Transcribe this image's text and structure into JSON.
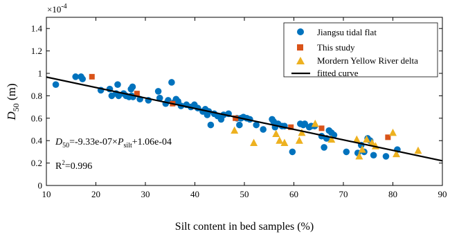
{
  "chart_data": {
    "type": "scatter",
    "xlabel": "Silt content in bed samples (%)",
    "ylabel_main": "D",
    "ylabel_sub": "50",
    "ylabel_unit": " (m)",
    "exponent_label": "×10",
    "exponent_power": "-4",
    "xlim": [
      10,
      90
    ],
    "ylim": [
      0,
      1.5
    ],
    "x_ticks": [
      10,
      20,
      30,
      40,
      50,
      60,
      70,
      80,
      90
    ],
    "y_ticks": [
      0,
      0.2,
      0.4,
      0.6,
      0.8,
      1.0,
      1.2,
      1.4
    ],
    "y_tick_labels": [
      "0",
      "0.2",
      "0.4",
      "0.6",
      "0.8",
      "1",
      "1.2",
      "1.4"
    ],
    "grid": false,
    "legend_position": "top-right",
    "equation": {
      "lhs_main": "D",
      "lhs_sub": "50",
      "rhs_a": "=-9.33e-07×",
      "rhs_p": "P",
      "rhs_sub": "silt",
      "rhs_b": "+1.06e-04"
    },
    "r2": {
      "main": "R",
      "sup": "2",
      "rest": "=0.996"
    },
    "series": [
      {
        "name": "Jiangsu tidal flat",
        "marker": "circle",
        "color": "#0072BD",
        "points": [
          [
            11.9,
            0.9
          ],
          [
            15.9,
            0.97
          ],
          [
            17.0,
            0.97
          ],
          [
            17.3,
            0.95
          ],
          [
            21.0,
            0.85
          ],
          [
            22.8,
            0.86
          ],
          [
            23.2,
            0.8
          ],
          [
            24.1,
            0.82
          ],
          [
            24.4,
            0.9
          ],
          [
            24.6,
            0.8
          ],
          [
            25.6,
            0.82
          ],
          [
            26.1,
            0.8
          ],
          [
            26.7,
            0.79
          ],
          [
            27.1,
            0.86
          ],
          [
            27.2,
            0.8
          ],
          [
            27.4,
            0.88
          ],
          [
            27.5,
            0.79
          ],
          [
            28.9,
            0.77
          ],
          [
            30.6,
            0.76
          ],
          [
            32.6,
            0.84
          ],
          [
            32.9,
            0.78
          ],
          [
            34.1,
            0.73
          ],
          [
            34.6,
            0.76
          ],
          [
            35.3,
            0.92
          ],
          [
            35.8,
            0.74
          ],
          [
            36.2,
            0.77
          ],
          [
            36.6,
            0.75
          ],
          [
            37.2,
            0.71
          ],
          [
            38.3,
            0.72
          ],
          [
            39.2,
            0.7
          ],
          [
            39.9,
            0.72
          ],
          [
            40.6,
            0.69
          ],
          [
            41.6,
            0.66
          ],
          [
            42.1,
            0.68
          ],
          [
            42.5,
            0.63
          ],
          [
            42.8,
            0.66
          ],
          [
            43.2,
            0.54
          ],
          [
            43.9,
            0.64
          ],
          [
            44.6,
            0.62
          ],
          [
            45.3,
            0.59
          ],
          [
            45.8,
            0.63
          ],
          [
            46.8,
            0.64
          ],
          [
            48.5,
            0.6
          ],
          [
            49.0,
            0.54
          ],
          [
            49.3,
            0.6
          ],
          [
            49.8,
            0.61
          ],
          [
            50.5,
            0.6
          ],
          [
            51.1,
            0.59
          ],
          [
            52.4,
            0.54
          ],
          [
            53.8,
            0.5
          ],
          [
            55.6,
            0.59
          ],
          [
            55.9,
            0.57
          ],
          [
            56.2,
            0.52
          ],
          [
            56.8,
            0.55
          ],
          [
            57.6,
            0.53
          ],
          [
            58.1,
            0.53
          ],
          [
            59.7,
            0.3
          ],
          [
            61.3,
            0.55
          ],
          [
            61.9,
            0.54
          ],
          [
            62.2,
            0.55
          ],
          [
            63.1,
            0.52
          ],
          [
            63.5,
            0.53
          ],
          [
            64.2,
            0.53
          ],
          [
            65.6,
            0.44
          ],
          [
            66.1,
            0.34
          ],
          [
            66.6,
            0.42
          ],
          [
            67.1,
            0.49
          ],
          [
            67.6,
            0.47
          ],
          [
            68.1,
            0.45
          ],
          [
            70.6,
            0.3
          ],
          [
            72.9,
            0.29
          ],
          [
            73.6,
            0.36
          ],
          [
            74.2,
            0.3
          ],
          [
            74.9,
            0.42
          ],
          [
            75.4,
            0.4
          ],
          [
            76.1,
            0.27
          ],
          [
            78.6,
            0.26
          ],
          [
            80.9,
            0.32
          ]
        ]
      },
      {
        "name": "This study",
        "marker": "square",
        "color": "#D95319",
        "points": [
          [
            19.2,
            0.97
          ],
          [
            28.3,
            0.82
          ],
          [
            35.5,
            0.73
          ],
          [
            48.2,
            0.6
          ],
          [
            59.4,
            0.52
          ],
          [
            65.6,
            0.51
          ],
          [
            79.0,
            0.43
          ]
        ]
      },
      {
        "name": "Mordern Yellow River delta",
        "marker": "triangle",
        "color": "#EDB120",
        "points": [
          [
            48.0,
            0.49
          ],
          [
            51.9,
            0.38
          ],
          [
            56.4,
            0.46
          ],
          [
            57.1,
            0.4
          ],
          [
            58.1,
            0.38
          ],
          [
            61.1,
            0.4
          ],
          [
            61.6,
            0.47
          ],
          [
            64.3,
            0.55
          ],
          [
            67.6,
            0.41
          ],
          [
            72.7,
            0.41
          ],
          [
            73.2,
            0.26
          ],
          [
            73.8,
            0.32
          ],
          [
            74.7,
            0.41
          ],
          [
            75.8,
            0.38
          ],
          [
            76.5,
            0.35
          ],
          [
            80.0,
            0.47
          ],
          [
            80.7,
            0.28
          ],
          [
            85.1,
            0.31
          ]
        ]
      },
      {
        "name": "fitted curve",
        "marker": "line",
        "color": "#000000",
        "points": [
          [
            10,
            0.967
          ],
          [
            90,
            0.22
          ]
        ]
      }
    ]
  }
}
